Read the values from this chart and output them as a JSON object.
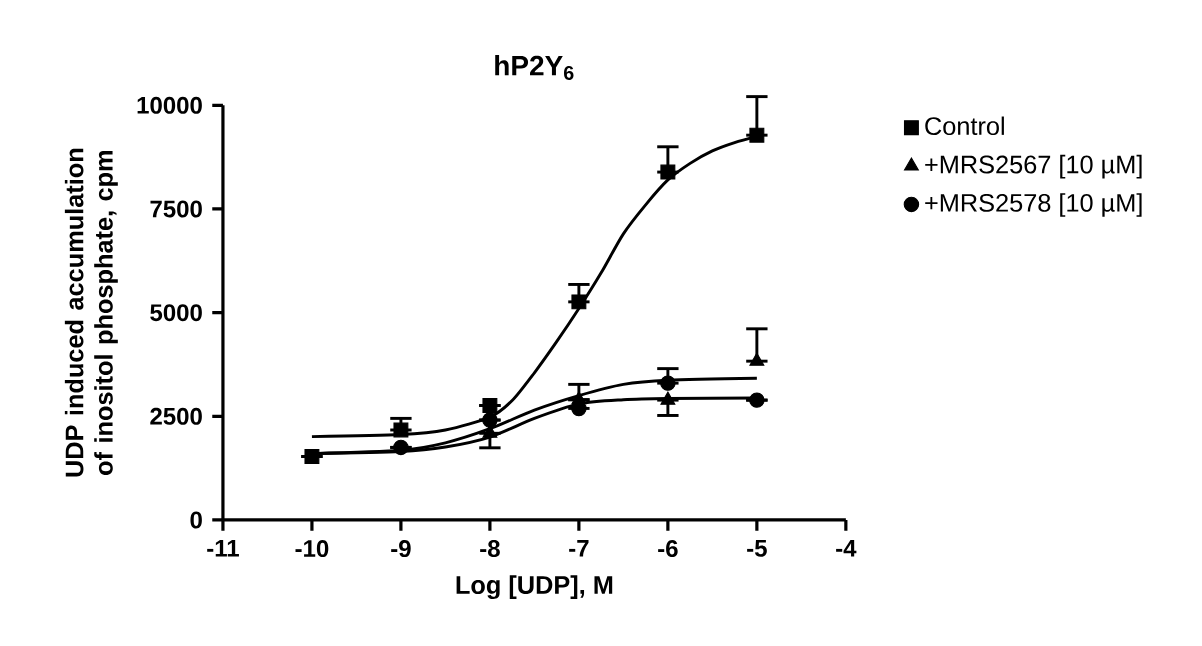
{
  "chart_data": {
    "type": "scatter",
    "title": "**hP2Y$_{6}$**",
    "xlabel": "Log [UDP], M",
    "ylabel": "UDP induced accumulation of inositol phosphate, cpm",
    "xlim": [
      -11,
      -4
    ],
    "xticks": [
      -11,
      -10,
      -9,
      -8,
      -7,
      -6,
      -5,
      -4
    ],
    "ylim": [
      0,
      10000
    ],
    "yticks": [
      0,
      2500,
      5000,
      7500,
      10000
    ],
    "legend": "top right",
    "grid": false,
    "series": [
      {
        "name": "Control",
        "color": "#000000",
        "marker": "square",
        "x": [
          -10,
          -9,
          -8,
          -7,
          -6,
          -5
        ],
        "values": [
          1530,
          2170,
          2760,
          5260,
          8390,
          9280
        ],
        "errors": [
          null,
          [
            2170,
            2450
          ],
          null,
          [
            5260,
            5680
          ],
          [
            8390,
            9000
          ],
          [
            9280,
            10210
          ]
        ]
      },
      {
        "name": "+MRS2567 [10 µM]",
        "color": "#000000",
        "marker": "triangle",
        "x": [
          -8,
          -7,
          -6,
          -5
        ],
        "values": [
          2090,
          2900,
          2890,
          3830
        ],
        "errors": [
          [
            1740,
            2090
          ],
          null,
          [
            2520,
            2890
          ],
          [
            3830,
            4610
          ]
        ]
      },
      {
        "name": "+MRS2578 [10 µM]",
        "color": "#000000",
        "marker": "circle",
        "x": [
          -9,
          -8,
          -7,
          -6,
          -5
        ],
        "values": [
          1750,
          2410,
          2690,
          3300,
          2890
        ],
        "errors": [
          null,
          null,
          [
            2690,
            3270
          ],
          [
            3300,
            3650
          ],
          null
        ]
      },
      {
        "type": "line",
        "color": "#000000",
        "x": [
          -10,
          -9,
          -8.5,
          -8,
          -7.75,
          -7.5,
          -7.25,
          -7,
          -6.75,
          -6.5,
          -6.25,
          -6,
          -5.75,
          -5.5,
          -5.25,
          -5
        ],
        "values": [
          2010,
          2060,
          2170,
          2480,
          2880,
          3550,
          4300,
          5100,
          5960,
          6900,
          7600,
          8200,
          8600,
          8900,
          9100,
          9250
        ]
      },
      {
        "type": "line",
        "color": "#000000",
        "x": [
          -10,
          -9,
          -8.5,
          -8,
          -7.5,
          -7,
          -6.5,
          -6,
          -5
        ],
        "values": [
          1600,
          1650,
          1760,
          2000,
          2450,
          2800,
          2900,
          2930,
          2940
        ]
      },
      {
        "type": "line",
        "color": "#000000",
        "x": [
          -10,
          -9,
          -8.5,
          -8,
          -7.5,
          -7,
          -6.5,
          -6,
          -5
        ],
        "values": [
          1600,
          1680,
          1860,
          2200,
          2650,
          3000,
          3270,
          3370,
          3420
        ]
      }
    ]
  }
}
